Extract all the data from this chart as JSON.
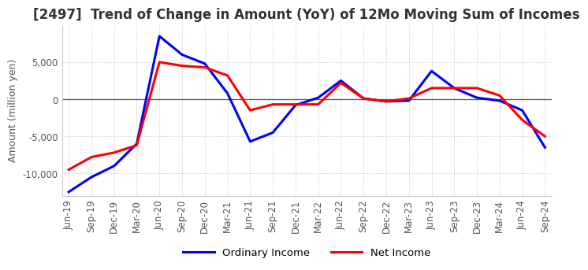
{
  "title": "[2497]  Trend of Change in Amount (YoY) of 12Mo Moving Sum of Incomes",
  "ylabel": "Amount (million yen)",
  "dates": [
    "Jun-19",
    "Sep-19",
    "Dec-19",
    "Mar-20",
    "Jun-20",
    "Sep-20",
    "Dec-20",
    "Mar-21",
    "Jun-21",
    "Sep-21",
    "Dec-21",
    "Mar-22",
    "Jun-22",
    "Sep-22",
    "Dec-22",
    "Mar-23",
    "Jun-23",
    "Sep-23",
    "Dec-23",
    "Mar-24",
    "Jun-24",
    "Sep-24"
  ],
  "ordinary_income": [
    -12500,
    -10500,
    -9000,
    -6000,
    8500,
    6000,
    4800,
    800,
    -5700,
    -4500,
    -800,
    200,
    2500,
    100,
    -300,
    -200,
    3800,
    1500,
    200,
    -200,
    -1500,
    -6500
  ],
  "net_income": [
    -9500,
    -7800,
    -7200,
    -6200,
    5000,
    4500,
    4300,
    3200,
    -1500,
    -700,
    -700,
    -700,
    2200,
    100,
    -300,
    100,
    1500,
    1500,
    1500,
    500,
    -2800,
    -5000
  ],
  "ordinary_color": "#0000ff",
  "net_color": "#ff0000",
  "ylim": [
    -13000,
    10000
  ],
  "yticks": [
    -10000,
    -5000,
    0,
    5000
  ],
  "grid_color": "#bbbbbb",
  "background_color": "#ffffff",
  "title_fontsize": 12,
  "label_fontsize": 9,
  "tick_fontsize": 8.5
}
